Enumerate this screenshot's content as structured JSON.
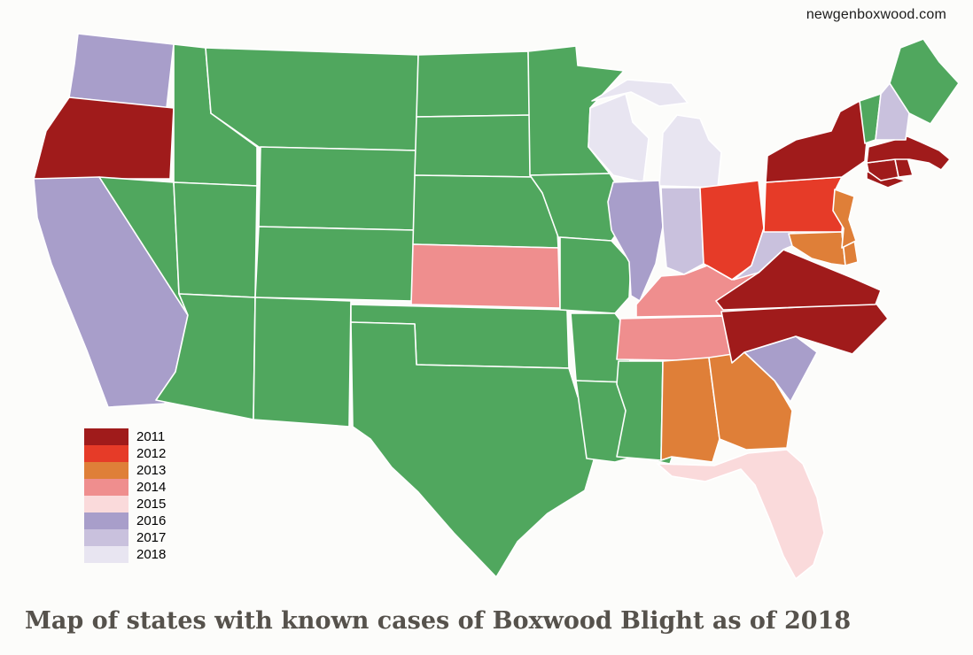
{
  "page": {
    "watermark": "newgenboxwood.com",
    "title": "Map of states with known cases of Boxwood Blight as of 2018"
  },
  "legend": {
    "items": [
      {
        "year": "2011",
        "color": "#a01b1b"
      },
      {
        "year": "2012",
        "color": "#e63b28"
      },
      {
        "year": "2013",
        "color": "#df7f38"
      },
      {
        "year": "2014",
        "color": "#ef8e8e"
      },
      {
        "year": "2015",
        "color": "#fadadb"
      },
      {
        "year": "2016",
        "color": "#a89eca"
      },
      {
        "year": "2017",
        "color": "#c9c1dd"
      },
      {
        "year": "2018",
        "color": "#e8e5f1"
      }
    ]
  },
  "map": {
    "no_case_color": "#50a75e",
    "border_color": "#ffffff",
    "background_color": "#fcfcfa",
    "states_by_year": {
      "2011": [
        "OR",
        "NY",
        "CT",
        "RI",
        "MA",
        "VA",
        "NC"
      ],
      "2012": [
        "OH",
        "PA"
      ],
      "2013": [
        "NJ",
        "DE",
        "MD",
        "AL",
        "GA"
      ],
      "2014": [
        "KS",
        "KY",
        "TN"
      ],
      "2015": [
        "FL"
      ],
      "2016": [
        "WA",
        "CA",
        "IL",
        "SC"
      ],
      "2017": [
        "IN",
        "WV",
        "NH"
      ],
      "2018": [
        "WI",
        "MI"
      ]
    },
    "no_case_states": [
      "ME",
      "VT",
      "ID",
      "MT",
      "WY",
      "ND",
      "SD",
      "NE",
      "MN",
      "IA",
      "MO",
      "AR",
      "LA",
      "MS",
      "OK",
      "TX",
      "NM",
      "AZ",
      "UT",
      "CO",
      "NV"
    ]
  }
}
